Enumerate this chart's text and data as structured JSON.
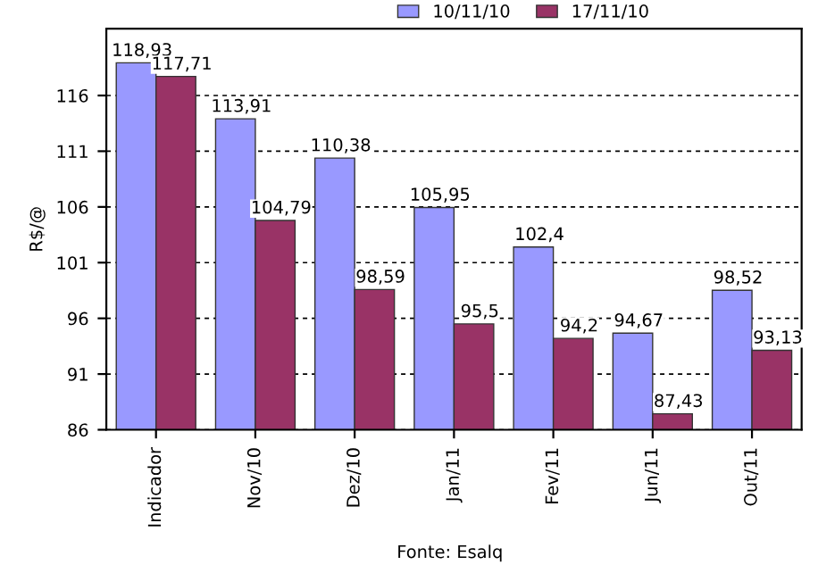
{
  "chart_data": {
    "type": "bar",
    "ylabel": "R$/@",
    "categories": [
      "Indicador",
      "Nov/10",
      "Dez/10",
      "Jan/11",
      "Fev/11",
      "Jun/11",
      "Out/11"
    ],
    "series": [
      {
        "name": "10/11/10",
        "color": "#9999ff",
        "values": [
          118.93,
          113.91,
          110.38,
          105.95,
          102.4,
          94.67,
          98.52
        ],
        "value_labels": [
          "118,93",
          "113,91",
          "110,38",
          "105,95",
          "102,4",
          "94,67",
          "98,52"
        ]
      },
      {
        "name": "17/11/10",
        "color": "#993366",
        "values": [
          117.71,
          104.79,
          98.59,
          95.5,
          94.2,
          87.43,
          93.13
        ],
        "value_labels": [
          "117,71",
          "104,79",
          "98,59",
          "95,5",
          "94,2",
          "87,43",
          "93,13"
        ]
      }
    ],
    "ylim": [
      86,
      122
    ],
    "yticks": [
      86,
      91,
      96,
      101,
      106,
      111,
      116
    ],
    "grid": "y",
    "legend": "top",
    "annotations": [
      "Fonte: Esalq"
    ]
  }
}
